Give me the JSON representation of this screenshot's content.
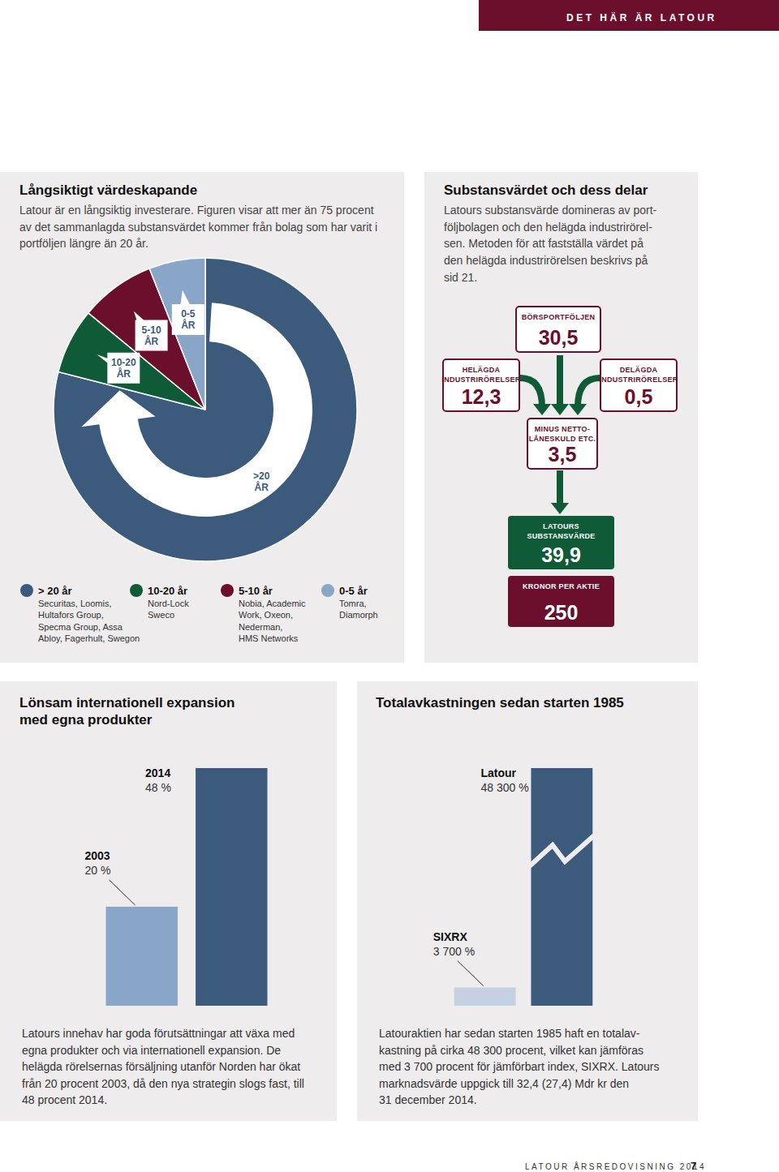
{
  "header": {
    "section": "DET HÄR ÄR LATOUR"
  },
  "chart_data": [
    {
      "type": "pie",
      "title": "Långsiktigt värdeskapande",
      "subtitle": [
        "Latour är en långsiktig investerare. Figuren visar att mer än 75 procent",
        "av det sammanlagda substansvärdet kommer från bolag som har varit i",
        "portföljen längre än 20 år."
      ],
      "categories": [
        ">20 ÅR",
        "10-20 ÅR",
        "5-10 ÅR",
        "0-5 ÅR"
      ],
      "values": [
        79,
        7,
        8,
        6
      ],
      "colors": [
        "#3c5a7b",
        "#0f5b37",
        "#6c0f2c",
        "#89a6c9"
      ],
      "legend_items": [
        {
          "name": "> 20 år",
          "lines": [
            "Securitas, Loomis,",
            "Hultafors Group,",
            "Specma Group, Assa",
            "Abloy, Fagerhult, Swegon"
          ]
        },
        {
          "name": "10-20 år",
          "lines": [
            "Nord-Lock",
            "Sweco"
          ]
        },
        {
          "name": "5-10 år",
          "lines": [
            "Nobia, Academic",
            "Work, Oxeon,",
            "Nederman,",
            "HMS Networks"
          ]
        },
        {
          "name": "0-5 år",
          "lines": [
            "Tomra,",
            "Diamorph"
          ]
        }
      ]
    },
    {
      "type": "bar",
      "title": [
        "Lönsam internationell expansion",
        "med egna produkter"
      ],
      "categories": [
        "2003",
        "2014"
      ],
      "values": [
        20,
        48
      ],
      "value_labels": [
        "20 %",
        "48 %"
      ],
      "colors": [
        "#89a6c9",
        "#3c5a7b"
      ],
      "data_labels": true,
      "tick_labels": false,
      "caption": [
        "Latours innehav har goda förutsättningar att växa med",
        "egna produkter och via internationell expansion. De",
        "helägda rörelsernas försäljning utanför Norden har ökat",
        "från 20 procent 2003, då den nya strategin slogs fast, till",
        "48 procent 2014."
      ]
    },
    {
      "type": "bar",
      "title": [
        "Totalavkastningen sedan starten 1985"
      ],
      "categories": [
        "SIXRX",
        "Latour"
      ],
      "values": [
        3700,
        48300
      ],
      "value_labels": [
        "3 700 %",
        "48 300 %"
      ],
      "colors": [
        "#c5d1e3",
        "#3c5a7b"
      ],
      "data_labels": true,
      "tick_labels": false,
      "caption": [
        "Latouraktien har sedan starten 1985 haft en totalav-",
        "kastning på cirka 48 300 procent, vilket kan jämföras",
        "med 3 700 procent för jämförbart index, SIXRX. Latours",
        "marknadsvärde uppgick till 32,4  (27,4) Mdr kr den",
        "31 december 2014."
      ]
    }
  ],
  "diagram": {
    "title": "Substansvärdet och dess delar",
    "description": [
      "Latours substansvärde domineras av port-",
      "följbolagen och den helägda industrirörel-",
      "sen. Metoden för att fastställa värdet på",
      "den helägda industrirörelsen beskrivs på",
      "sid 21."
    ],
    "nodes": [
      {
        "label": [
          "BÖRSPORTFÖLJEN"
        ],
        "value": "30,5"
      },
      {
        "label": [
          "HELÄGDA",
          "INDUSTRIRÖRELSER"
        ],
        "value": "12,3"
      },
      {
        "label": [
          "DELÄGDA",
          "INDUSTRIRÖRELSER"
        ],
        "value": "0,5"
      },
      {
        "label": [
          "MINUS NETTO-",
          "LÅNESKULD ETC."
        ],
        "value": "3,5"
      },
      {
        "label": [
          "LATOURS",
          "SUBSTANSVÄRDE"
        ],
        "value": "39,9"
      },
      {
        "label": [
          "KRONOR PER AKTIE"
        ],
        "value": "250"
      }
    ]
  },
  "footer": {
    "text": "LATOUR ÅRSREDOVISNING 2014",
    "page": "7"
  }
}
